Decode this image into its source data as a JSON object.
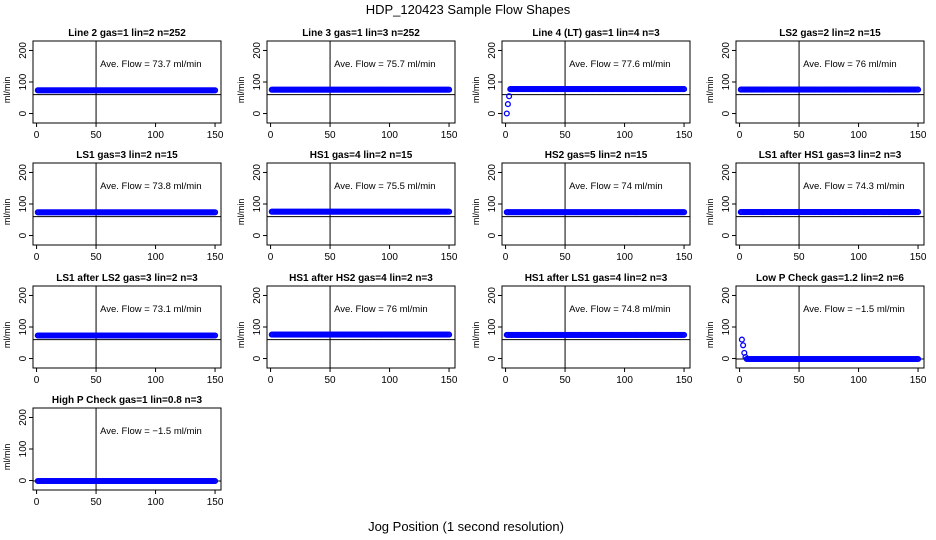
{
  "title": "HDP_120423  Sample Flow Shapes",
  "xlabel": "Jog Position (1 second resolution)",
  "chart_data": [
    {
      "type": "scatter",
      "title": "Line 2 gas=1 lin=2 n=252",
      "annotation": "Ave. Flow = 73.7  ml/min",
      "ylabel": "ml/min",
      "xlim": [
        -3,
        155
      ],
      "ylim": [
        -30,
        230
      ],
      "xticks": [
        0,
        50,
        100,
        150
      ],
      "yticks": [
        0,
        100,
        200
      ],
      "vline": 50,
      "hline": 60,
      "x_range": [
        1,
        150
      ],
      "y_level": 73.7,
      "initial_points": []
    },
    {
      "type": "scatter",
      "title": "Line 3 gas=1 lin=3 n=252",
      "annotation": "Ave. Flow = 75.7  ml/min",
      "ylabel": "ml/min",
      "xlim": [
        -3,
        155
      ],
      "ylim": [
        -30,
        230
      ],
      "xticks": [
        0,
        50,
        100,
        150
      ],
      "yticks": [
        0,
        100,
        200
      ],
      "vline": 50,
      "hline": 60,
      "x_range": [
        1,
        150
      ],
      "y_level": 75.7,
      "initial_points": []
    },
    {
      "type": "scatter",
      "title": "Line 4 (LT) gas=1 lin=4 n=3",
      "annotation": "Ave. Flow = 77.6  ml/min",
      "ylabel": "ml/min",
      "xlim": [
        -3,
        155
      ],
      "ylim": [
        -30,
        230
      ],
      "xticks": [
        0,
        50,
        100,
        150
      ],
      "yticks": [
        0,
        100,
        200
      ],
      "vline": 50,
      "hline": 60,
      "x_range": [
        4,
        150
      ],
      "y_level": 77.6,
      "initial_points": [
        [
          1,
          0
        ],
        [
          2,
          30
        ],
        [
          3,
          55
        ]
      ]
    },
    {
      "type": "scatter",
      "title": "LS2 gas=2 lin=2 n=15",
      "annotation": "Ave. Flow = 76  ml/min",
      "ylabel": "ml/min",
      "xlim": [
        -3,
        155
      ],
      "ylim": [
        -30,
        230
      ],
      "xticks": [
        0,
        50,
        100,
        150
      ],
      "yticks": [
        0,
        100,
        200
      ],
      "vline": 50,
      "hline": 60,
      "x_range": [
        1,
        150
      ],
      "y_level": 76,
      "initial_points": []
    },
    {
      "type": "scatter",
      "title": "LS1 gas=3 lin=2 n=15",
      "annotation": "Ave. Flow = 73.8  ml/min",
      "ylabel": "ml/min",
      "xlim": [
        -3,
        155
      ],
      "ylim": [
        -30,
        230
      ],
      "xticks": [
        0,
        50,
        100,
        150
      ],
      "yticks": [
        0,
        100,
        200
      ],
      "vline": 50,
      "hline": 60,
      "x_range": [
        1,
        150
      ],
      "y_level": 73.8,
      "initial_points": []
    },
    {
      "type": "scatter",
      "title": "HS1 gas=4 lin=2 n=15",
      "annotation": "Ave. Flow = 75.5  ml/min",
      "ylabel": "ml/min",
      "xlim": [
        -3,
        155
      ],
      "ylim": [
        -30,
        230
      ],
      "xticks": [
        0,
        50,
        100,
        150
      ],
      "yticks": [
        0,
        100,
        200
      ],
      "vline": 50,
      "hline": 60,
      "x_range": [
        1,
        150
      ],
      "y_level": 75.5,
      "initial_points": []
    },
    {
      "type": "scatter",
      "title": "HS2 gas=5 lin=2 n=15",
      "annotation": "Ave. Flow = 74  ml/min",
      "ylabel": "ml/min",
      "xlim": [
        -3,
        155
      ],
      "ylim": [
        -30,
        230
      ],
      "xticks": [
        0,
        50,
        100,
        150
      ],
      "yticks": [
        0,
        100,
        200
      ],
      "vline": 50,
      "hline": 60,
      "x_range": [
        1,
        150
      ],
      "y_level": 74,
      "initial_points": []
    },
    {
      "type": "scatter",
      "title": "LS1 after HS1 gas=3 lin=2 n=3",
      "annotation": "Ave. Flow = 74.3  ml/min",
      "ylabel": "ml/min",
      "xlim": [
        -3,
        155
      ],
      "ylim": [
        -30,
        230
      ],
      "xticks": [
        0,
        50,
        100,
        150
      ],
      "yticks": [
        0,
        100,
        200
      ],
      "vline": 50,
      "hline": 60,
      "x_range": [
        1,
        150
      ],
      "y_level": 74.3,
      "initial_points": []
    },
    {
      "type": "scatter",
      "title": "LS1 after LS2 gas=3 lin=2 n=3",
      "annotation": "Ave. Flow = 73.1  ml/min",
      "ylabel": "ml/min",
      "xlim": [
        -3,
        155
      ],
      "ylim": [
        -30,
        230
      ],
      "xticks": [
        0,
        50,
        100,
        150
      ],
      "yticks": [
        0,
        100,
        200
      ],
      "vline": 50,
      "hline": 60,
      "x_range": [
        1,
        150
      ],
      "y_level": 73.1,
      "initial_points": []
    },
    {
      "type": "scatter",
      "title": "HS1 after HS2 gas=4 lin=2 n=3",
      "annotation": "Ave. Flow = 76  ml/min",
      "ylabel": "ml/min",
      "xlim": [
        -3,
        155
      ],
      "ylim": [
        -30,
        230
      ],
      "xticks": [
        0,
        50,
        100,
        150
      ],
      "yticks": [
        0,
        100,
        200
      ],
      "vline": 50,
      "hline": 60,
      "x_range": [
        1,
        150
      ],
      "y_level": 76,
      "initial_points": []
    },
    {
      "type": "scatter",
      "title": "HS1 after LS1 gas=4 lin=2 n=3",
      "annotation": "Ave. Flow = 74.8  ml/min",
      "ylabel": "ml/min",
      "xlim": [
        -3,
        155
      ],
      "ylim": [
        -30,
        230
      ],
      "xticks": [
        0,
        50,
        100,
        150
      ],
      "yticks": [
        0,
        100,
        200
      ],
      "vline": 50,
      "hline": 60,
      "x_range": [
        1,
        150
      ],
      "y_level": 74.8,
      "initial_points": []
    },
    {
      "type": "scatter",
      "title": "Low P Check gas=1.2 lin=2 n=6",
      "annotation": "Ave. Flow = −1.5  ml/min",
      "ylabel": "ml/min",
      "xlim": [
        -3,
        155
      ],
      "ylim": [
        -30,
        230
      ],
      "xticks": [
        0,
        50,
        100,
        150
      ],
      "yticks": [
        0,
        100,
        200
      ],
      "vline": 50,
      "hline": -1.5,
      "x_range": [
        6,
        150
      ],
      "y_level": -1.5,
      "initial_points": [
        [
          2,
          60
        ],
        [
          3,
          42
        ],
        [
          4,
          18
        ],
        [
          5,
          5
        ]
      ]
    },
    {
      "type": "scatter",
      "title": "High P Check gas=1 lin=0.8 n=3",
      "annotation": "Ave. Flow = −1.5  ml/min",
      "ylabel": "ml/min",
      "xlim": [
        -3,
        155
      ],
      "ylim": [
        -30,
        230
      ],
      "xticks": [
        0,
        50,
        100,
        150
      ],
      "yticks": [
        0,
        100,
        200
      ],
      "vline": 50,
      "hline": -1.5,
      "x_range": [
        1,
        150
      ],
      "y_level": -1.5,
      "initial_points": []
    }
  ],
  "colors": {
    "points": "#0000ff",
    "axes": "#000000",
    "background": "#ffffff"
  }
}
